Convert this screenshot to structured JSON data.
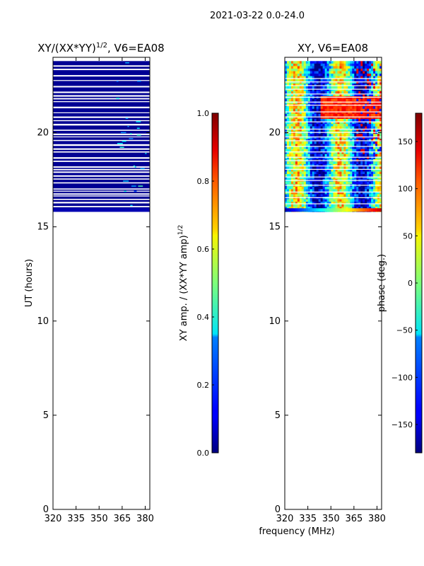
{
  "page_title": "2021-03-22 0.0-24.0",
  "chart_data": [
    {
      "type": "heatmap",
      "title": "XY/(XX*YY)",
      "title_exponent": "1/2",
      "title_suffix": ", V6=EA08",
      "xlabel": "",
      "ylabel": "UT (hours)",
      "xlim": [
        320,
        383
      ],
      "ylim": [
        0,
        24
      ],
      "xticks": [
        "320",
        "335",
        "350",
        "365",
        "380"
      ],
      "xtick_values": [
        320,
        335,
        350,
        365,
        380
      ],
      "yticks": [
        "0",
        "5",
        "10",
        "15",
        "20"
      ],
      "ytick_values": [
        0,
        5,
        10,
        15,
        20
      ],
      "data_start_hour": 15.8,
      "data_end_hour": 23.8,
      "dominant_value": 0.0,
      "colorbar": {
        "label": "XY amp. / (XX*YY amp)",
        "label_exponent": "1/2",
        "range": [
          0.0,
          1.0
        ],
        "ticks": [
          "0.0",
          "0.2",
          "0.4",
          "0.6",
          "0.8",
          "1.0"
        ],
        "tick_values": [
          0.0,
          0.2,
          0.4,
          0.6,
          0.8,
          1.0
        ]
      }
    },
    {
      "type": "heatmap",
      "title": "XY, V6=EA08",
      "xlabel": "frequency (MHz)",
      "ylabel": "",
      "xlim": [
        320,
        383
      ],
      "ylim": [
        0,
        24
      ],
      "xticks": [
        "320",
        "335",
        "350",
        "365",
        "380"
      ],
      "xtick_values": [
        320,
        335,
        350,
        365,
        380
      ],
      "yticks": [
        "0",
        "5",
        "10",
        "15",
        "20"
      ],
      "ytick_values": [
        0,
        5,
        10,
        15,
        20
      ],
      "data_start_hour": 15.8,
      "data_end_hour": 23.8,
      "colorbar": {
        "label": "phase (deg.)",
        "range": [
          -180,
          180
        ],
        "ticks": [
          "−150",
          "−100",
          "−50",
          "0",
          "50",
          "100",
          "150"
        ],
        "tick_values": [
          -150,
          -100,
          -50,
          0,
          50,
          100,
          150
        ]
      }
    }
  ]
}
